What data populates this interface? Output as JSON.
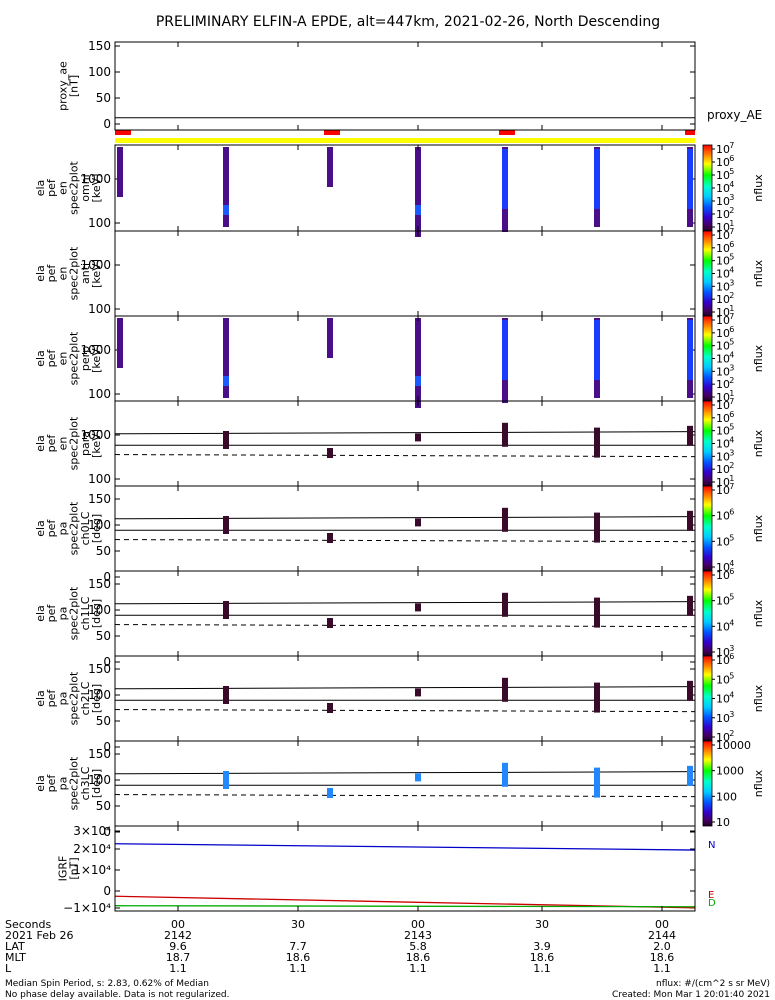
{
  "title": "PRELIMINARY ELFIN-A EPDE, alt=447km, 2021-02-26, North Descending",
  "colors": {
    "red_bar": "#ff0000",
    "yellow_bar": "#ffff00",
    "igrf_n": "#0000c8",
    "igrf_e": "#cc0000",
    "igrf_d": "#00aa00",
    "trace": "#000000"
  },
  "panels": [
    {
      "id": "proxy-ae",
      "ylabel": [
        "proxy_ae",
        "[nT]"
      ],
      "yticks": [
        "150",
        "100",
        "50",
        "0"
      ],
      "side_label": "proxy_AE"
    },
    {
      "id": "omni",
      "ylabel": [
        "ela",
        "pef",
        "en",
        "spec2plot",
        "omni",
        "[keV]"
      ],
      "yticks": [
        "1000",
        "100"
      ],
      "cb_label": "nflux",
      "cb_ticks": [
        "10",
        "10",
        "10",
        "10",
        "10",
        "10",
        "10"
      ],
      "cb_exps": [
        "7",
        "6",
        "5",
        "4",
        "3",
        "2",
        "1"
      ]
    },
    {
      "id": "anti",
      "ylabel": [
        "ela",
        "pef",
        "en",
        "spec2plot",
        "anti",
        "[keV]"
      ],
      "yticks": [
        "1000",
        "100"
      ],
      "cb_label": "nflux",
      "cb_ticks": [
        "10",
        "10",
        "10",
        "10",
        "10",
        "10",
        "10"
      ],
      "cb_exps": [
        "7",
        "6",
        "5",
        "4",
        "3",
        "2",
        "1"
      ]
    },
    {
      "id": "perp",
      "ylabel": [
        "ela",
        "pef",
        "en",
        "spec2plot",
        "perp",
        "[keV]"
      ],
      "yticks": [
        "1000",
        "100"
      ],
      "cb_label": "nflux",
      "cb_ticks": [
        "10",
        "10",
        "10",
        "10",
        "10",
        "10",
        "10"
      ],
      "cb_exps": [
        "7",
        "6",
        "5",
        "4",
        "3",
        "2",
        "1"
      ]
    },
    {
      "id": "para",
      "ylabel": [
        "ela",
        "pef",
        "en",
        "spec2plot",
        "para",
        "[keV]"
      ],
      "yticks": [
        "1000",
        "100"
      ],
      "cb_label": "nflux",
      "cb_ticks": [
        "10",
        "10",
        "10",
        "10",
        "10",
        "10",
        "10"
      ],
      "cb_exps": [
        "7",
        "6",
        "5",
        "4",
        "3",
        "2",
        "1"
      ]
    },
    {
      "id": "ch0lc",
      "ylabel": [
        "ela",
        "pef",
        "pa",
        "spec2plot",
        "ch0LC",
        "[deg]"
      ],
      "yticks": [
        "150",
        "100",
        "50",
        "0"
      ],
      "cb_label": "nflux",
      "cb_ticks": [
        "10",
        "10",
        "10",
        "10"
      ],
      "cb_exps": [
        "7",
        "6",
        "5",
        "4"
      ]
    },
    {
      "id": "ch1lc",
      "ylabel": [
        "ela",
        "pef",
        "pa",
        "spec2plot",
        "ch1LC",
        "[deg]"
      ],
      "yticks": [
        "150",
        "100",
        "50",
        "0"
      ],
      "cb_label": "nflux",
      "cb_ticks": [
        "10",
        "10",
        "10",
        "10"
      ],
      "cb_exps": [
        "6",
        "5",
        "4",
        "3"
      ]
    },
    {
      "id": "ch2lc",
      "ylabel": [
        "ela",
        "pef",
        "pa",
        "spec2plot",
        "ch2LC",
        "[deg]"
      ],
      "yticks": [
        "150",
        "100",
        "50",
        "0"
      ],
      "cb_label": "nflux",
      "cb_ticks": [
        "10",
        "10",
        "10",
        "10",
        "10"
      ],
      "cb_exps": [
        "6",
        "5",
        "4",
        "3",
        "2"
      ]
    },
    {
      "id": "ch3lc",
      "ylabel": [
        "ela",
        "pef",
        "pa",
        "spec2plot",
        "ch3LC",
        "[deg]"
      ],
      "yticks": [
        "150",
        "100",
        "50",
        "0"
      ],
      "cb_label": "nflux",
      "cb_ticks": [
        "10000",
        "1000",
        "100",
        "10"
      ],
      "cb_exps": []
    },
    {
      "id": "igrf",
      "ylabel": [
        "IGRF",
        "[nT]"
      ],
      "yticks": [
        "3×10⁴",
        "2×10⁴",
        "1×10⁴",
        "0",
        "−1×10⁴"
      ],
      "legend": [
        "N",
        "E",
        "D"
      ]
    }
  ],
  "footer": {
    "rows": [
      {
        "label": "Seconds",
        "values": [
          "00",
          "30",
          "00",
          "30",
          "00"
        ]
      },
      {
        "label": "2021 Feb 26",
        "values": [
          "2142",
          "",
          "2143",
          "",
          "2144"
        ]
      },
      {
        "label": "LAT",
        "values": [
          "9.6",
          "7.7",
          "5.8",
          "3.9",
          "2.0"
        ]
      },
      {
        "label": "MLT",
        "values": [
          "18.7",
          "18.6",
          "18.6",
          "18.6",
          "18.6"
        ]
      },
      {
        "label": "L",
        "values": [
          "1.1",
          "1.1",
          "1.1",
          "1.1",
          "1.1"
        ]
      }
    ],
    "note_left_1": "Median Spin Period, s: 2.83, 0.62% of Median",
    "note_left_2": "No phase delay available. Data is not regularized.",
    "note_right_1": "nflux: #/(cm^2 s sr MeV)",
    "note_right_2": "Created: Mon Mar  1 20:01:40 2021"
  },
  "chart_data": {
    "type": "heatmap",
    "x_axis": {
      "label": "2021 Feb 26",
      "tick_times": [
        "21:42:00",
        "21:42:30",
        "21:43:00",
        "21:43:30",
        "21:44:00"
      ]
    },
    "proxy_ae": {
      "ylim": [
        -10,
        160
      ],
      "value": 12
    },
    "energy_panels_ylim_keV": [
      70,
      6000
    ],
    "pa_panels_ylim_deg": [
      0,
      160
    ],
    "pa_reference_lines": {
      "upper_solid": [
        [
          -0.26,
          112
        ],
        [
          1.15,
          116
        ]
      ],
      "middle_solid": [
        [
          -0.26,
          90
        ],
        [
          1.15,
          90
        ]
      ],
      "dashed": [
        [
          -0.26,
          72
        ],
        [
          1.15,
          68
        ]
      ]
    },
    "igrf": {
      "ylim": [
        -15000,
        30000
      ],
      "series": [
        {
          "name": "N",
          "values": [
            [
              -0.26,
              22500
            ],
            [
              1.15,
              19500
            ]
          ]
        },
        {
          "name": "E",
          "values": [
            [
              -0.26,
              -2500
            ],
            [
              1.15,
              -8000
            ]
          ]
        },
        {
          "name": "D",
          "values": [
            [
              -0.26,
              -7000
            ],
            [
              1.15,
              -7500
            ]
          ]
        }
      ]
    }
  }
}
